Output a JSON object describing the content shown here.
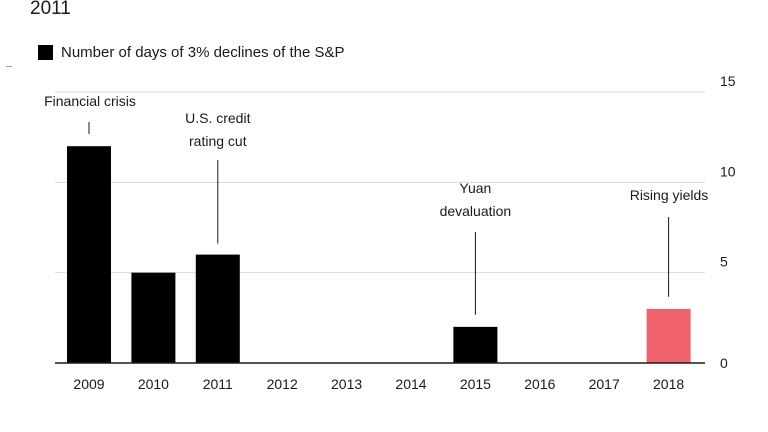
{
  "title_fragment": "2011",
  "chart_data": {
    "type": "bar",
    "legend": "Number of days of 3% declines of the S&P",
    "legend_placement": "top-left",
    "categories": [
      "2009",
      "2010",
      "2011",
      "2012",
      "2013",
      "2014",
      "2015",
      "2016",
      "2017",
      "2018"
    ],
    "series": [
      {
        "name": "Number of days of 3% declines of the S&P",
        "values": [
          12,
          5,
          6,
          0,
          0,
          0,
          2,
          0,
          0,
          3
        ]
      }
    ],
    "colors": {
      "default": "#000000",
      "highlight": "#f0626b",
      "highlight_category": "2018"
    },
    "ylim": [
      0,
      15
    ],
    "yticks": [
      0,
      5,
      10,
      15
    ],
    "grid": true,
    "annotations": [
      {
        "category": "2009",
        "lines": [
          "Financial crisis"
        ]
      },
      {
        "category": "2011",
        "lines": [
          "U.S. credit",
          "rating cut"
        ]
      },
      {
        "category": "2015",
        "lines": [
          "Yuan",
          "devaluation"
        ]
      },
      {
        "category": "2018",
        "lines": [
          "Rising yields"
        ]
      }
    ]
  }
}
